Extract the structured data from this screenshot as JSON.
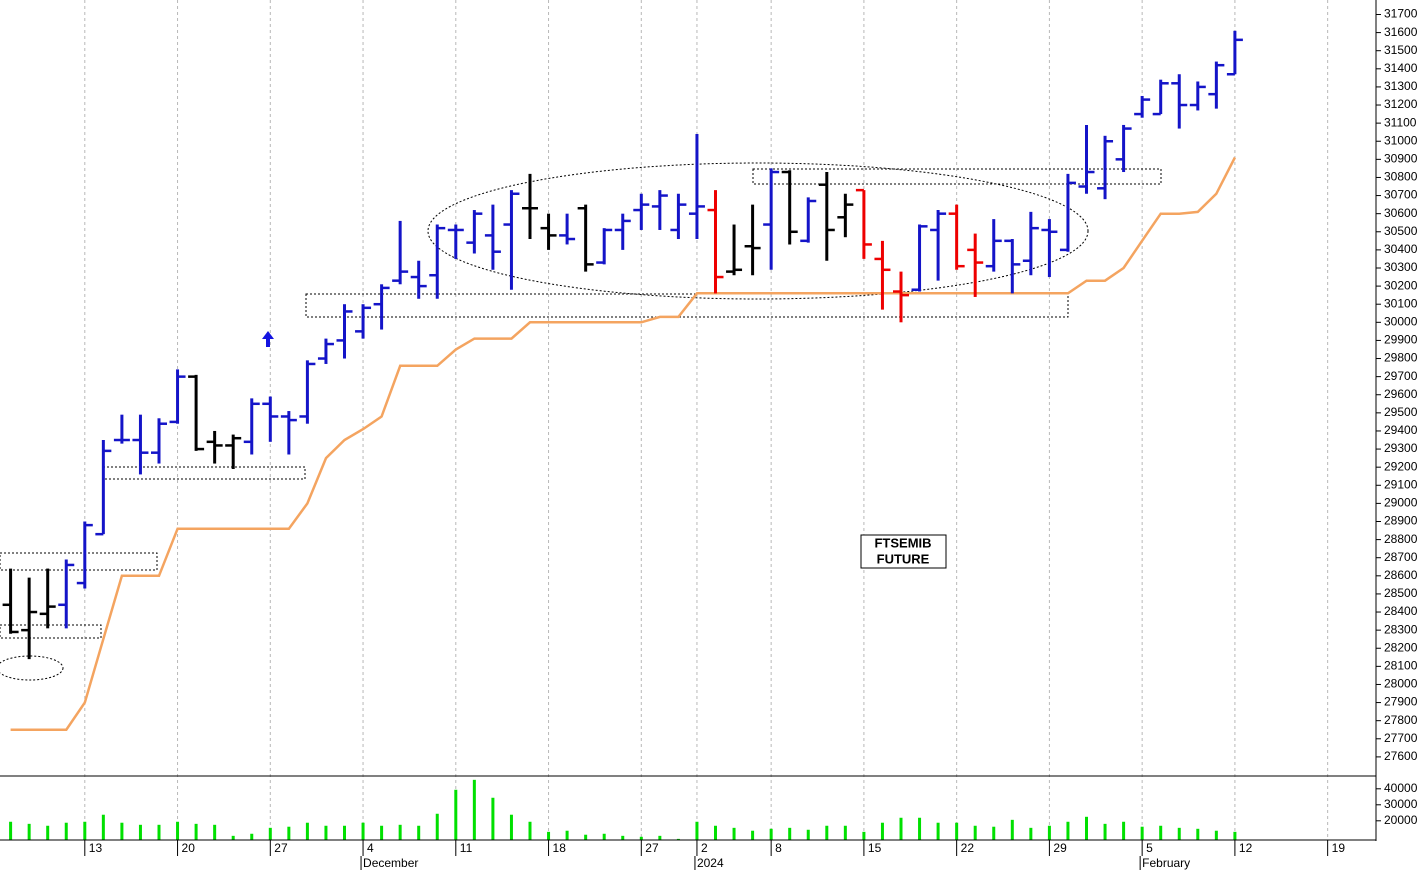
{
  "chart_data": {
    "type": "ohlc",
    "annotations": [
      "FTSEMIB",
      "FUTURE"
    ],
    "categories": [
      null,
      null,
      null,
      null,
      "13",
      null,
      null,
      null,
      null,
      "20",
      null,
      null,
      null,
      null,
      "27",
      null,
      null,
      null,
      null,
      "4",
      null,
      null,
      null,
      null,
      "11",
      null,
      null,
      null,
      null,
      "18",
      null,
      null,
      null,
      null,
      "27",
      null,
      null,
      "2",
      null,
      null,
      null,
      "8",
      null,
      null,
      null,
      null,
      "15",
      null,
      null,
      null,
      null,
      "22",
      null,
      null,
      null,
      null,
      "29",
      null,
      null,
      null,
      null,
      "5",
      null,
      null,
      null,
      null,
      "12",
      null,
      null,
      null,
      null,
      "19",
      null,
      null
    ],
    "months": [
      null,
      null,
      null,
      null,
      null,
      null,
      null,
      null,
      null,
      null,
      null,
      null,
      null,
      null,
      null,
      null,
      null,
      null,
      null,
      "December",
      null,
      null,
      null,
      null,
      null,
      null,
      null,
      null,
      null,
      null,
      null,
      null,
      null,
      null,
      null,
      null,
      null,
      "2024",
      null,
      null,
      null,
      null,
      null,
      null,
      null,
      null,
      null,
      null,
      null,
      null,
      null,
      null,
      null,
      null,
      null,
      null,
      null,
      null,
      null,
      null,
      null,
      "February",
      null,
      null,
      null,
      null,
      null,
      null,
      null,
      null,
      null,
      null,
      null,
      null
    ],
    "open": [
      28440,
      28300,
      28390,
      28440,
      28560,
      28830,
      29350,
      29350,
      29280,
      29450,
      29700,
      29340,
      29320,
      29340,
      29550,
      29480,
      29480,
      29800,
      29900,
      29950,
      30100,
      30230,
      30250,
      30260,
      30510,
      30440,
      30480,
      30540,
      30630,
      30520,
      30480,
      30630,
      30330,
      30510,
      30620,
      30640,
      30510,
      30600,
      30620,
      30280,
      30420,
      30540,
      30830,
      30450,
      30760,
      30580,
      30730,
      30350,
      30170,
      30180,
      30510,
      30600,
      30400,
      30310,
      30450,
      30340,
      30510,
      30400,
      30750,
      30740,
      30900,
      31150,
      31150,
      31320,
      31200,
      31260,
      31370,
      null,
      null,
      null,
      null,
      null,
      null,
      null
    ],
    "high": [
      28640,
      28590,
      28640,
      28690,
      28900,
      29350,
      29490,
      29490,
      29470,
      29740,
      29710,
      29400,
      29380,
      29580,
      29590,
      29510,
      29790,
      29910,
      30100,
      30100,
      30210,
      30560,
      30340,
      30540,
      30540,
      30620,
      30650,
      30730,
      30820,
      30600,
      30600,
      30650,
      30520,
      30600,
      30710,
      30730,
      30710,
      31040,
      30730,
      30540,
      30650,
      30850,
      30840,
      30690,
      30830,
      30710,
      30730,
      30450,
      30280,
      30540,
      30620,
      30650,
      30490,
      30570,
      30460,
      30610,
      30570,
      30820,
      31090,
      31030,
      31090,
      31250,
      31340,
      31370,
      31330,
      31440,
      31610,
      null,
      null,
      null,
      null,
      null,
      null,
      null
    ],
    "low": [
      28280,
      28140,
      28310,
      28310,
      28530,
      28830,
      29330,
      29160,
      29220,
      29440,
      29290,
      29220,
      29190,
      29270,
      29340,
      29270,
      29440,
      29770,
      29800,
      29910,
      29960,
      30210,
      30130,
      30130,
      30350,
      30380,
      30290,
      30180,
      30460,
      30400,
      30430,
      30280,
      30320,
      30400,
      30510,
      30510,
      30460,
      30460,
      30160,
      30260,
      30260,
      30290,
      30430,
      30440,
      30340,
      30470,
      30350,
      30070,
      30000,
      30170,
      30230,
      30290,
      30140,
      30280,
      30160,
      30260,
      30250,
      30390,
      30710,
      30680,
      30830,
      31130,
      31150,
      31070,
      31170,
      31180,
      31370,
      null,
      null,
      null,
      null,
      null,
      null,
      null
    ],
    "close": [
      28290,
      28400,
      28430,
      28660,
      28880,
      29290,
      29350,
      29280,
      29440,
      29700,
      29300,
      29320,
      29360,
      29550,
      29480,
      29460,
      29770,
      29880,
      30060,
      30080,
      30190,
      30280,
      30200,
      30520,
      30510,
      30600,
      30390,
      30710,
      30630,
      30480,
      30460,
      30320,
      30510,
      30560,
      30650,
      30700,
      30650,
      30640,
      30250,
      30290,
      30410,
      30830,
      30500,
      30670,
      30510,
      30650,
      30430,
      30290,
      30150,
      30530,
      30600,
      30310,
      30330,
      30450,
      30320,
      30520,
      30500,
      30770,
      30830,
      31000,
      31070,
      31230,
      31320,
      31200,
      31300,
      31420,
      31560,
      null,
      null,
      null,
      null,
      null,
      null,
      null
    ],
    "colors": [
      "#000000",
      "#000000",
      "#000000",
      "#1414c8",
      "#1414c8",
      "#1414c8",
      "#1414c8",
      "#1414c8",
      "#1414c8",
      "#1414c8",
      "#000000",
      "#000000",
      "#000000",
      "#1414c8",
      "#1414c8",
      "#1414c8",
      "#1414c8",
      "#1414c8",
      "#1414c8",
      "#1414c8",
      "#1414c8",
      "#1414c8",
      "#1414c8",
      "#1414c8",
      "#1414c8",
      "#1414c8",
      "#1414c8",
      "#1414c8",
      "#000000",
      "#000000",
      "#1414c8",
      "#000000",
      "#1414c8",
      "#1414c8",
      "#1414c8",
      "#1414c8",
      "#1414c8",
      "#1414c8",
      "#ee0000",
      "#000000",
      "#000000",
      "#1414c8",
      "#000000",
      "#1414c8",
      "#000000",
      "#000000",
      "#ee0000",
      "#ee0000",
      "#ee0000",
      "#1414c8",
      "#1414c8",
      "#ee0000",
      "#ee0000",
      "#1414c8",
      "#1414c8",
      "#1414c8",
      "#1414c8",
      "#1414c8",
      "#1414c8",
      "#1414c8",
      "#1414c8",
      "#1414c8",
      "#1414c8",
      "#1414c8",
      "#1414c8",
      "#1414c8",
      "#1414c8",
      null,
      null,
      null,
      null,
      null,
      null,
      null
    ],
    "stop_line": {
      "color": "#f4a460",
      "values": [
        27750,
        27750,
        27750,
        27750,
        27900,
        28250,
        28600,
        28600,
        28600,
        28860,
        28860,
        28860,
        28860,
        28860,
        28860,
        28860,
        29000,
        29250,
        29350,
        29410,
        29480,
        29760,
        29760,
        29760,
        29850,
        29910,
        29910,
        29910,
        30000,
        30000,
        30000,
        30000,
        30000,
        30000,
        30000,
        30030,
        30030,
        30160,
        30160,
        30160,
        30160,
        30160,
        30160,
        30160,
        30160,
        30160,
        30160,
        30160,
        30160,
        30160,
        30160,
        30160,
        30160,
        30160,
        30160,
        30160,
        30160,
        30160,
        30230,
        30230,
        30300,
        30450,
        30600,
        30600,
        30610,
        30710,
        30910,
        null,
        null,
        null,
        null,
        null,
        null,
        null
      ]
    },
    "ylim": [
      27500,
      31780
    ],
    "yticks": [
      27600,
      27700,
      27800,
      27900,
      28000,
      28100,
      28200,
      28300,
      28400,
      28500,
      28600,
      28700,
      28800,
      28900,
      29000,
      29100,
      29200,
      29300,
      29400,
      29500,
      29600,
      29700,
      29800,
      29900,
      30000,
      30100,
      30200,
      30300,
      30400,
      30500,
      30600,
      30700,
      30800,
      30900,
      31000,
      31100,
      31200,
      31300,
      31400,
      31500,
      31600,
      31700
    ],
    "volume": {
      "color": "#00e000",
      "ylim": [
        8000,
        48000
      ],
      "yticks": [
        20000,
        30000,
        40000
      ],
      "values": [
        19400,
        18100,
        16900,
        18800,
        19400,
        23800,
        18800,
        17500,
        17500,
        19400,
        18100,
        17500,
        10600,
        11900,
        15600,
        16300,
        18800,
        16900,
        16900,
        18800,
        16900,
        17500,
        16900,
        24400,
        39400,
        45600,
        34400,
        23800,
        19400,
        13100,
        13800,
        11300,
        11900,
        10600,
        10000,
        10600,
        8700,
        19400,
        16900,
        15600,
        13800,
        15000,
        15600,
        14400,
        16900,
        16900,
        13100,
        18800,
        21900,
        21900,
        18800,
        18800,
        16900,
        16300,
        20600,
        15600,
        16900,
        19400,
        22500,
        18100,
        19400,
        16300,
        16900,
        15600,
        15000,
        13800,
        13100,
        null,
        null,
        null,
        null,
        null,
        null,
        null
      ]
    },
    "grid": true
  }
}
